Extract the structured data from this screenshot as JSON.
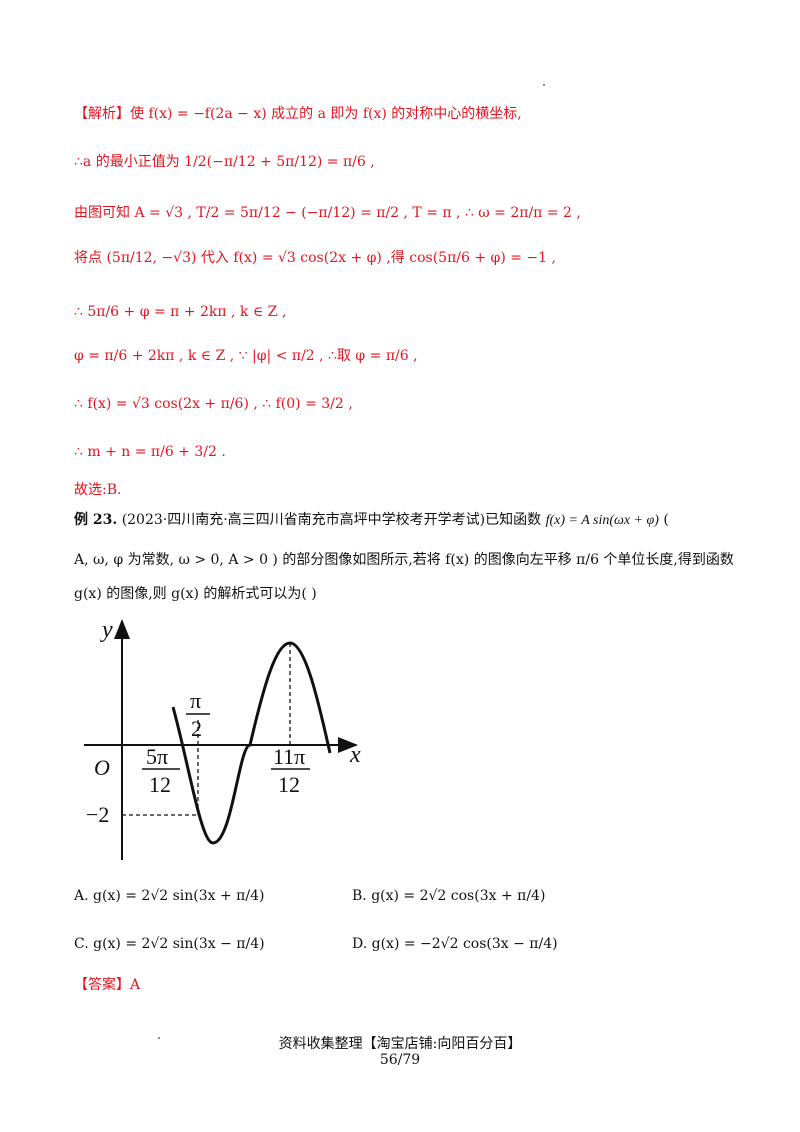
{
  "analysis": {
    "l1": "【解析】使 f(x) = −f(2a − x) 成立的 a 即为 f(x) 的对称中心的横坐标,",
    "l2": "∴a 的最小正值为 1/2(−π/12 + 5π/12) = π/6 ,",
    "l3": "由图可知 A = √3 ,  T/2 = 5π/12 − (−π/12) = π/2 ,  T = π ,  ∴ ω = 2π/π = 2 ,",
    "l4": "将点 (5π/12, −√3) 代入 f(x) = √3 cos(2x + φ) ,得 cos(5π/6 + φ) = −1 ,",
    "l5": "∴ 5π/6 + φ = π + 2kπ ,   k ∈ Z ,",
    "l6": "φ = π/6 + 2kπ ,   k ∈ Z ,  ∵ |φ| < π/2 ,  ∴取 φ = π/6 ,",
    "l7": "∴ f(x) = √3 cos(2x + π/6) ,  ∴ f(0) = 3/2 ,",
    "l8": "∴ m + n = π/6 + 3/2 .",
    "choice": "故选:B."
  },
  "example": {
    "label": "例 23.",
    "source": "(2023·四川南充·高三四川省南充市高坪中学校考开学考试)已知函数",
    "func": "f(x) = A sin(ωx + φ)",
    "paren_open": "(",
    "line2": "A, ω, φ 为常数, ω > 0, A > 0 ) 的部分图像如图所示,若将 f(x) 的图像向左平移 π/6 个单位长度,得到函数",
    "line3": "g(x) 的图像,则 g(x) 的解析式可以为(    )"
  },
  "graph": {
    "y_label": "y",
    "x_label": "x",
    "origin": "O",
    "t_pi2_num": "π",
    "t_pi2_den": "2",
    "t_5pi_num": "5π",
    "t_5pi_den": "12",
    "t_11pi_num": "11π",
    "t_11pi_den": "12",
    "t_neg2": "−2"
  },
  "options": {
    "A": "A.  g(x) = 2√2 sin(3x + π/4)",
    "B": "B.  g(x) = 2√2 cos(3x + π/4)",
    "C": "C.  g(x) = 2√2 sin(3x − π/4)",
    "D": "D.  g(x) = −2√2 cos(3x − π/4)"
  },
  "answer": "【答案】A",
  "footer": {
    "shop": "资料收集整理【淘宝店铺:向阳百分百】",
    "page": "56/79"
  }
}
